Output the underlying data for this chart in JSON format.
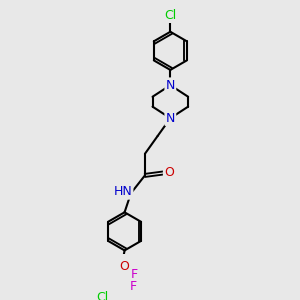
{
  "bg_color": "#e8e8e8",
  "bond_color": "#000000",
  "atom_colors": {
    "N": "#0000cc",
    "O": "#cc0000",
    "Cl": "#00cc00",
    "F": "#cc00cc",
    "H": "#666666"
  },
  "line_width": 1.5,
  "font_size": 9
}
